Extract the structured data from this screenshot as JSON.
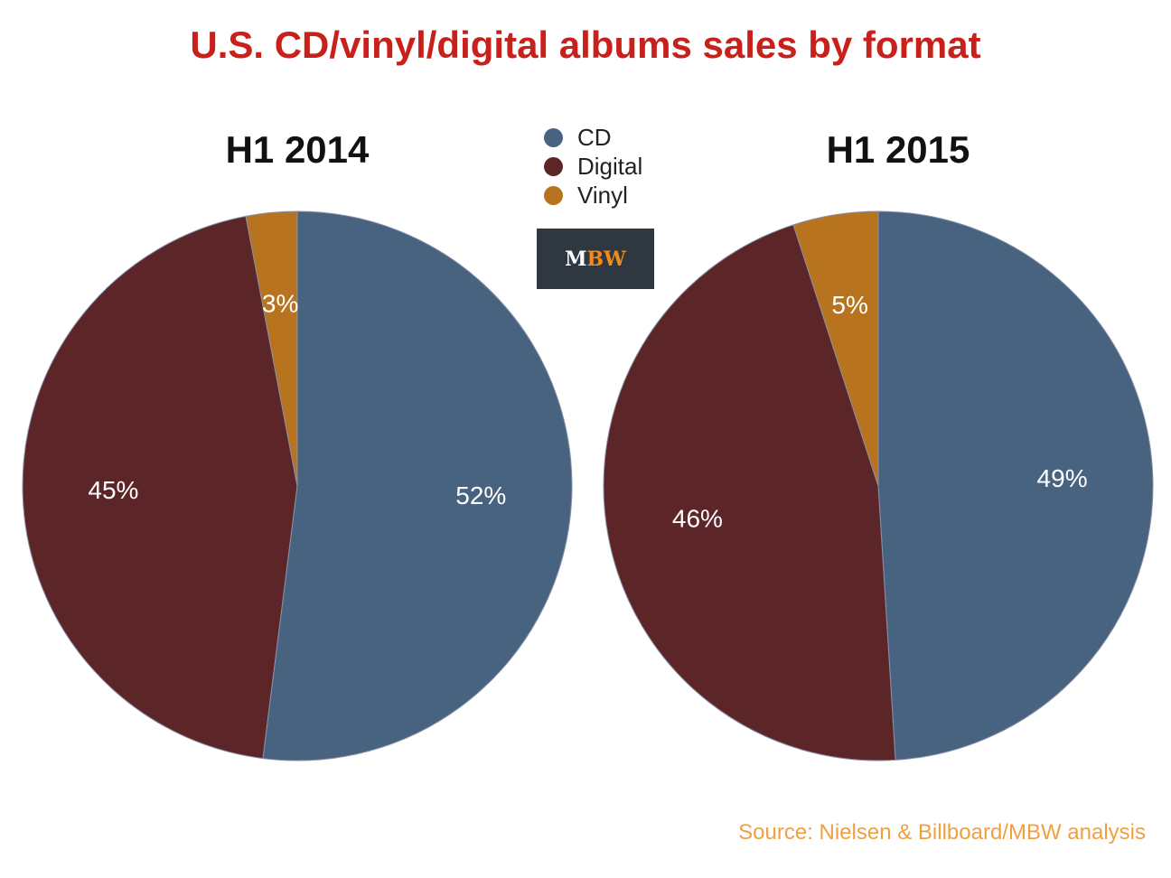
{
  "title": "U.S. CD/vinyl/digital albums sales by format",
  "legend": [
    {
      "label": "CD",
      "color": "#48637f"
    },
    {
      "label": "Digital",
      "color": "#5c2629"
    },
    {
      "label": "Vinyl",
      "color": "#b8731f"
    }
  ],
  "logo": {
    "m": "M",
    "bw": "BW"
  },
  "source": "Source: Nielsen & Billboard/MBW analysis",
  "chart_data": [
    {
      "type": "pie",
      "title": "H1 2014",
      "categories": [
        "CD",
        "Digital",
        "Vinyl"
      ],
      "values": [
        52,
        45,
        3
      ],
      "labels": [
        "52%",
        "45%",
        "3%"
      ],
      "colors": [
        "#48637f",
        "#5c2629",
        "#b8731f"
      ]
    },
    {
      "type": "pie",
      "title": "H1 2015",
      "categories": [
        "CD",
        "Digital",
        "Vinyl"
      ],
      "values": [
        49,
        46,
        5
      ],
      "labels": [
        "49%",
        "46%",
        "5%"
      ],
      "colors": [
        "#48637f",
        "#5c2629",
        "#b8731f"
      ]
    }
  ]
}
